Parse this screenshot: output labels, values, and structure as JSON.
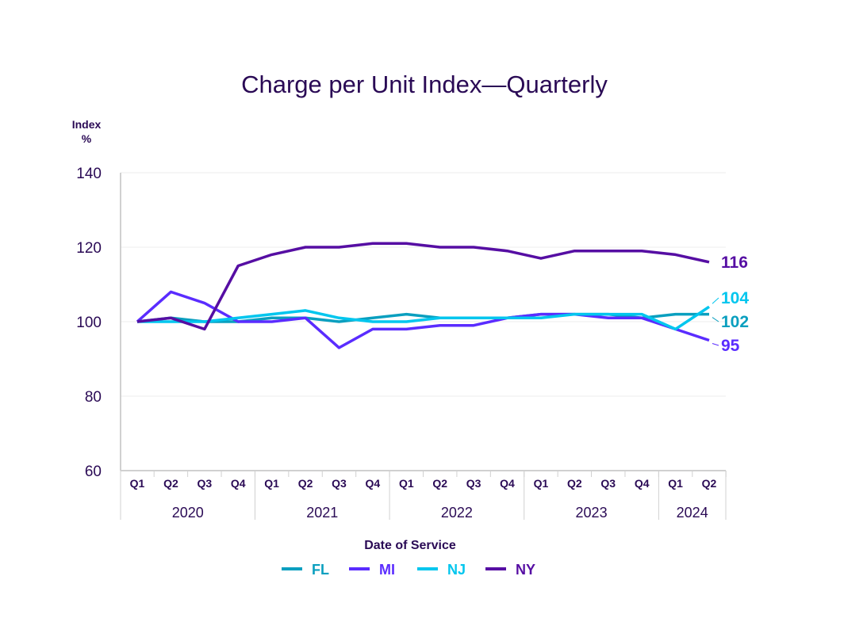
{
  "chart_data": {
    "type": "line",
    "title": "Charge per Unit Index—Quarterly",
    "ylabel": "Index %",
    "ylabel_lines": [
      "Index",
      "%"
    ],
    "xlabel": "Date of Service",
    "ylim": [
      60,
      140
    ],
    "yticks": [
      60,
      80,
      100,
      120,
      140
    ],
    "grid": true,
    "legend_position": "bottom",
    "quarters": [
      "Q1",
      "Q2",
      "Q3",
      "Q4",
      "Q1",
      "Q2",
      "Q3",
      "Q4",
      "Q1",
      "Q2",
      "Q3",
      "Q4",
      "Q1",
      "Q2",
      "Q3",
      "Q4",
      "Q1",
      "Q2"
    ],
    "years": [
      {
        "label": "2020",
        "start": 0,
        "end": 3
      },
      {
        "label": "2021",
        "start": 4,
        "end": 7
      },
      {
        "label": "2022",
        "start": 8,
        "end": 11
      },
      {
        "label": "2023",
        "start": 12,
        "end": 15
      },
      {
        "label": "2024",
        "start": 16,
        "end": 17
      }
    ],
    "series": [
      {
        "name": "FL",
        "color": "#0a9fbf",
        "end_label": "102",
        "values": [
          100,
          101,
          100,
          100,
          101,
          101,
          100,
          101,
          102,
          101,
          101,
          101,
          102,
          102,
          102,
          101,
          102,
          102
        ]
      },
      {
        "name": "MI",
        "color": "#5a2cff",
        "end_label": "95",
        "values": [
          100,
          108,
          105,
          100,
          100,
          101,
          93,
          98,
          98,
          99,
          99,
          101,
          102,
          102,
          101,
          101,
          98,
          95
        ]
      },
      {
        "name": "NJ",
        "color": "#00c6ee",
        "end_label": "104",
        "values": [
          100,
          100,
          100,
          101,
          102,
          103,
          101,
          100,
          100,
          101,
          101,
          101,
          101,
          102,
          102,
          102,
          98,
          104
        ]
      },
      {
        "name": "NY",
        "color": "#560ea3",
        "end_label": "116",
        "values": [
          100,
          101,
          98,
          115,
          118,
          120,
          120,
          121,
          121,
          120,
          120,
          119,
          117,
          119,
          119,
          119,
          118,
          116
        ]
      }
    ]
  }
}
